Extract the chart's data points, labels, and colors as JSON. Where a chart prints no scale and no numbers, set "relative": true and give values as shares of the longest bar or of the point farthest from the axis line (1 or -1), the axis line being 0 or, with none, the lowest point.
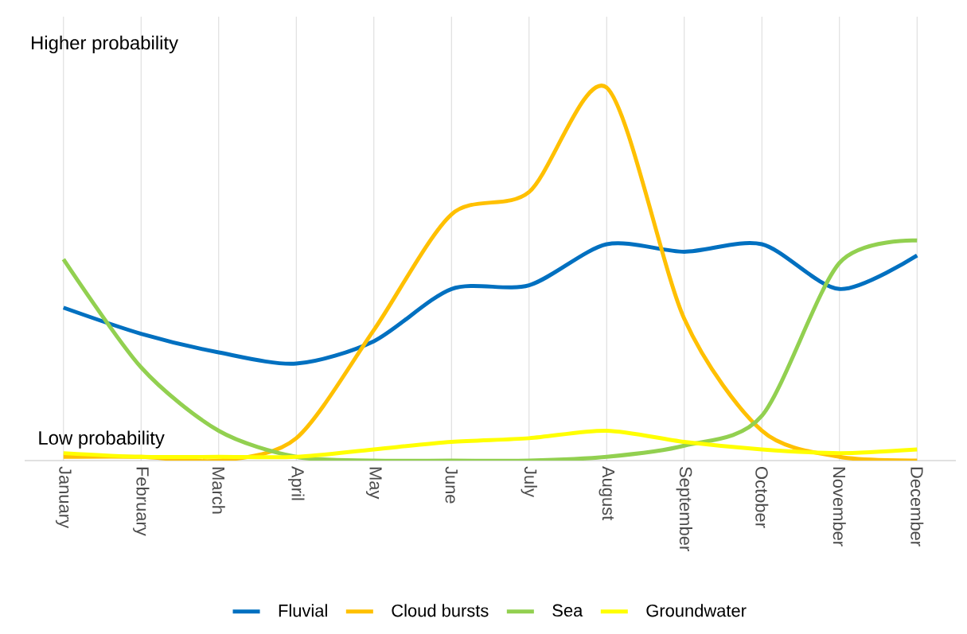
{
  "chart_data": {
    "type": "line",
    "relative": true,
    "categories": [
      "January",
      "February",
      "March",
      "April",
      "May",
      "June",
      "July",
      "August",
      "September",
      "October",
      "November",
      "December"
    ],
    "series": [
      {
        "name": "Fluvial",
        "color": "#0070c0",
        "values": [
          0.41,
          0.34,
          0.29,
          0.26,
          0.32,
          0.46,
          0.47,
          0.58,
          0.56,
          0.58,
          0.46,
          0.55
        ]
      },
      {
        "name": "Cloud bursts",
        "color": "#ffc000",
        "values": [
          0.01,
          0.01,
          0,
          0.06,
          0.35,
          0.66,
          0.72,
          1,
          0.38,
          0.08,
          0.01,
          0
        ]
      },
      {
        "name": "Sea",
        "color": "#92d050",
        "values": [
          0.54,
          0.25,
          0.08,
          0.01,
          0,
          0,
          0,
          0.01,
          0.04,
          0.12,
          0.53,
          0.59
        ]
      },
      {
        "name": "Groundwater",
        "color": "#ffff00",
        "values": [
          0.02,
          0.01,
          0.01,
          0.01,
          0.03,
          0.05,
          0.06,
          0.08,
          0.05,
          0.03,
          0.02,
          0.03
        ]
      }
    ],
    "annotations": [
      "Higher probability",
      "Low probability"
    ],
    "grid": "x",
    "legend": "bottom",
    "marker": "none",
    "line_style": "solid"
  }
}
